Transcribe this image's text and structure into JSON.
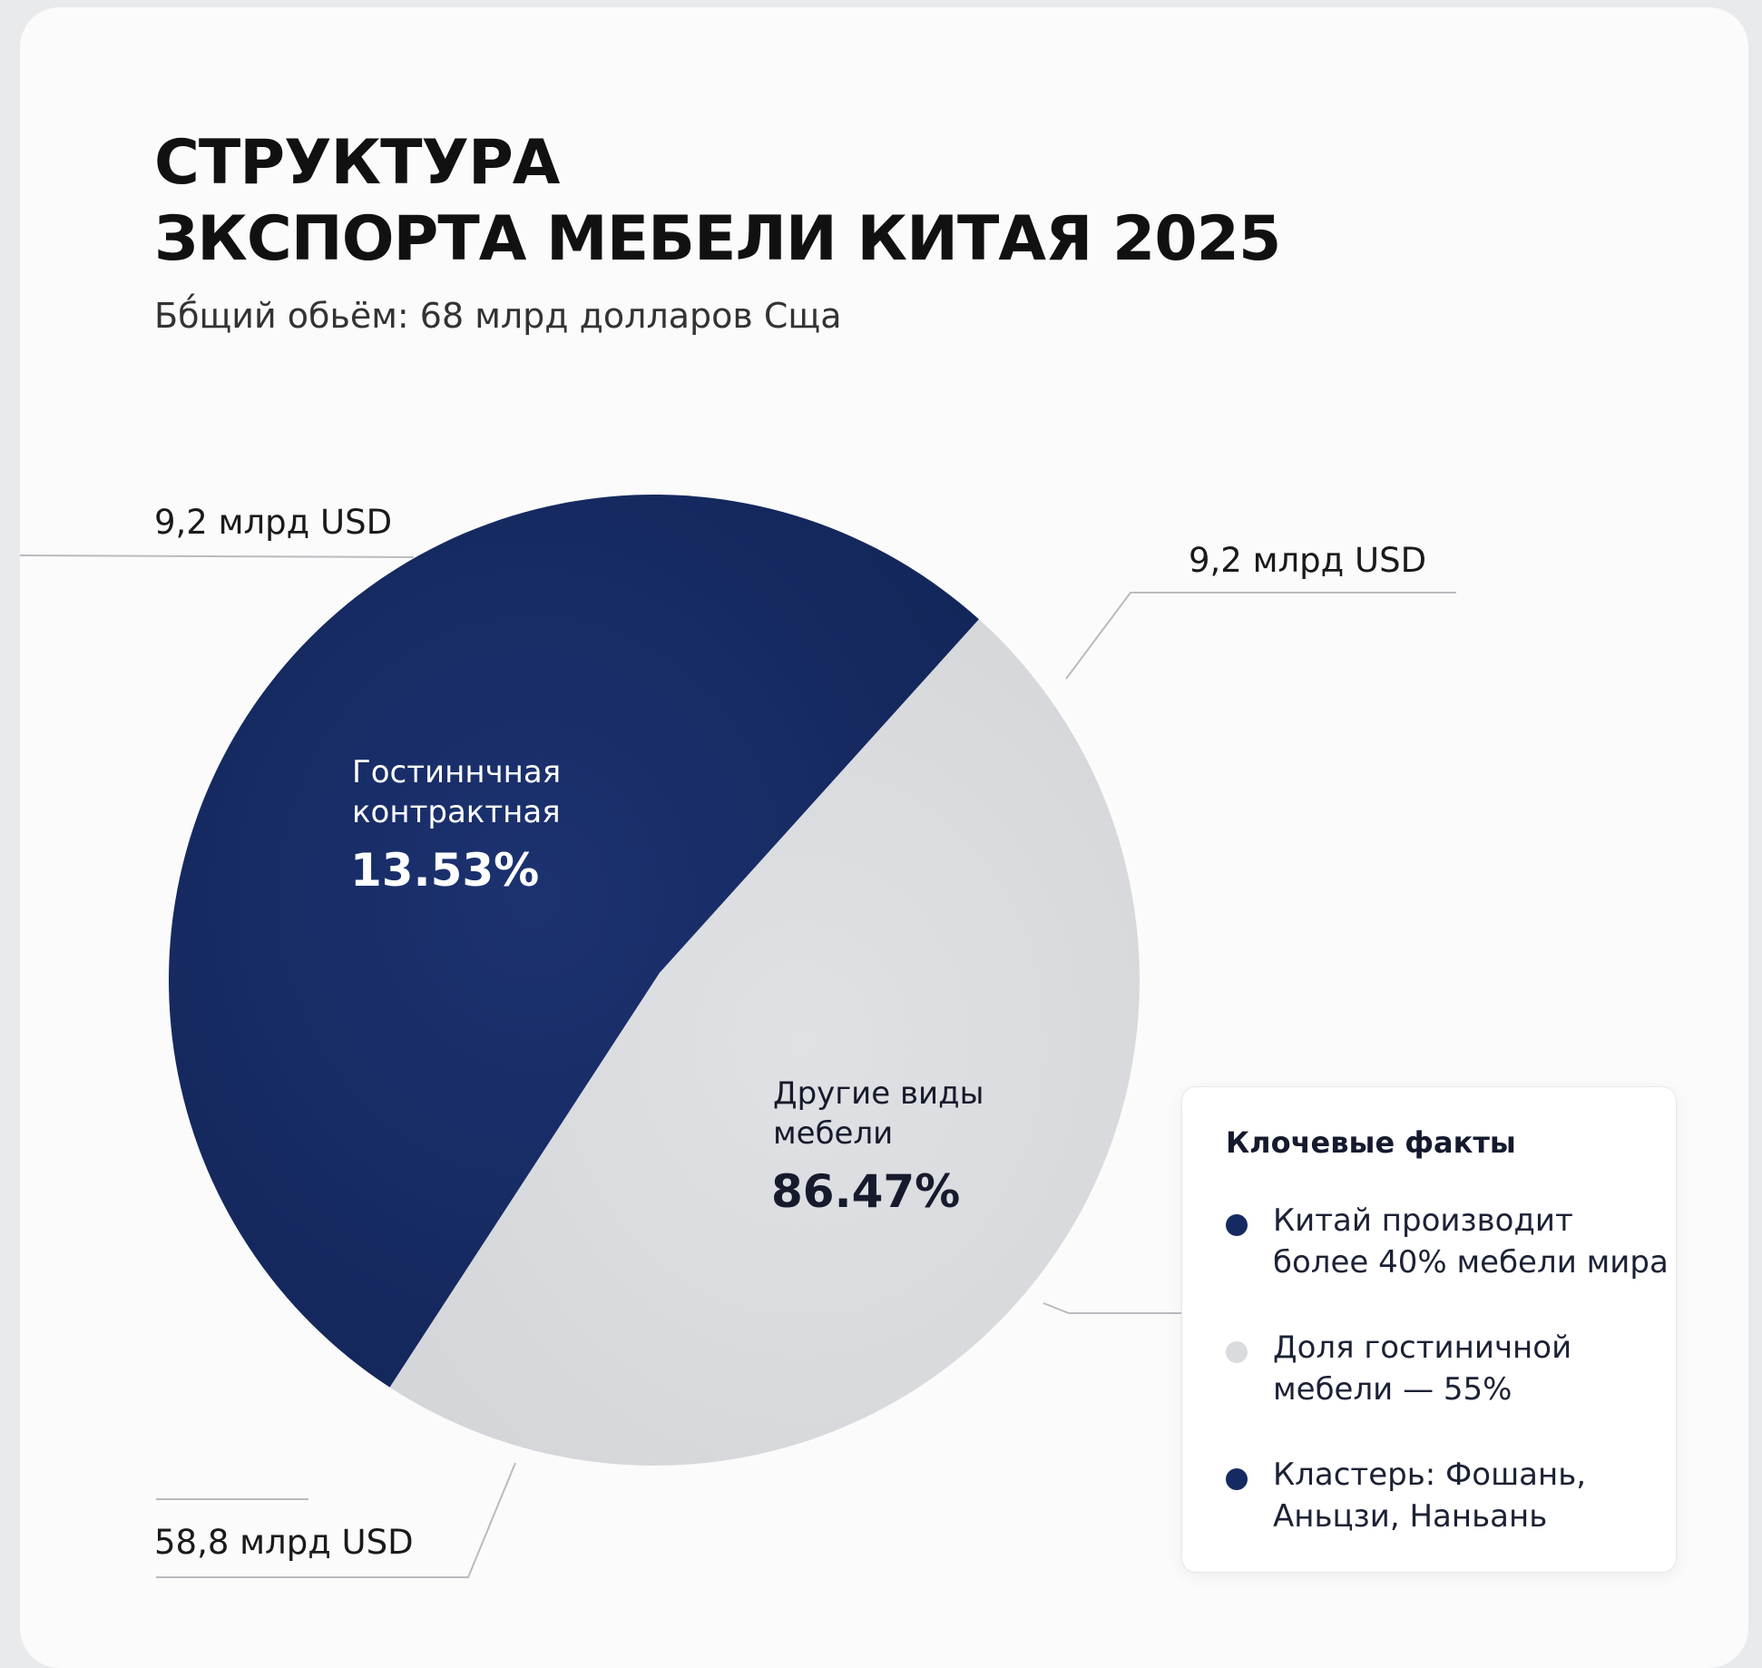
{
  "title_lines": [
    "СТРУКТУРА",
    "ЗКСПОРТА МЕБЕЛИ КИТАЯ 2025"
  ],
  "subtitle": "Бб́щий обьём: 68 млрд долларов Сща",
  "colors": {
    "navy": "#162a62",
    "light": "#d9dbdf",
    "text_dark": "#111111",
    "leader": "#b9bbc0"
  },
  "chart_data": {
    "type": "pie",
    "title": "СТРУКТУРА ЗКСПОРТА МЕБЕЛИ КИТАЯ 2025",
    "slices": [
      {
        "label_lines": [
          "Гостиннчная",
          "контрактная"
        ],
        "percent_label": "13.53%",
        "value": 13.53,
        "color": "#162a62",
        "label_color": "#ffffff"
      },
      {
        "label_lines": [
          "Другие виды",
          "мебели"
        ],
        "percent_label": "86.47%",
        "value": 86.47,
        "color": "#d9dbdf",
        "label_color": "#161a2c"
      }
    ],
    "callouts": [
      "9,2 млрд USD",
      "9,2 млрд USD",
      "58,8 млрд USD"
    ]
  },
  "facts": {
    "title": "Клочевые факты",
    "items": [
      {
        "lines": [
          "Китай производит",
          "более 40% мебели мира"
        ],
        "color": "#162a62"
      },
      {
        "lines": [
          "Доля гостиничной",
          "мебели — 55%"
        ],
        "color": "#d9dbdf"
      },
      {
        "lines": [
          "Кластерь: Фошань,",
          "Аньцзи, Наньань"
        ],
        "color": "#162a62"
      }
    ]
  }
}
